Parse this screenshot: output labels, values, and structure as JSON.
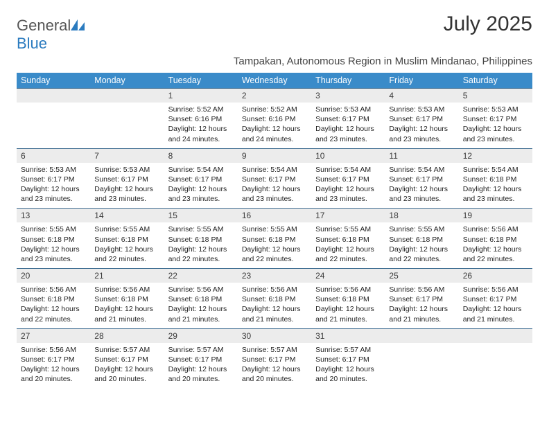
{
  "brand": {
    "name_a": "General",
    "name_b": "Blue"
  },
  "title": "July 2025",
  "location": "Tampakan, Autonomous Region in Muslim Mindanao, Philippines",
  "colors": {
    "header_bg": "#3a8bc9",
    "header_fg": "#ffffff",
    "daynum_bg": "#ececec",
    "daynum_border": "#3a6a8f",
    "logo_blue": "#2b7bbf",
    "text": "#222222"
  },
  "fonts": {
    "title_size": 30,
    "location_size": 15,
    "header_size": 12.5,
    "cell_size": 10.5
  },
  "day_labels": [
    "Sunday",
    "Monday",
    "Tuesday",
    "Wednesday",
    "Thursday",
    "Friday",
    "Saturday"
  ],
  "weeks": [
    {
      "nums": [
        "",
        "",
        "1",
        "2",
        "3",
        "4",
        "5"
      ],
      "cells": [
        null,
        null,
        {
          "sunrise": "5:52 AM",
          "sunset": "6:16 PM",
          "daylight": "12 hours and 24 minutes."
        },
        {
          "sunrise": "5:52 AM",
          "sunset": "6:16 PM",
          "daylight": "12 hours and 24 minutes."
        },
        {
          "sunrise": "5:53 AM",
          "sunset": "6:17 PM",
          "daylight": "12 hours and 23 minutes."
        },
        {
          "sunrise": "5:53 AM",
          "sunset": "6:17 PM",
          "daylight": "12 hours and 23 minutes."
        },
        {
          "sunrise": "5:53 AM",
          "sunset": "6:17 PM",
          "daylight": "12 hours and 23 minutes."
        }
      ]
    },
    {
      "nums": [
        "6",
        "7",
        "8",
        "9",
        "10",
        "11",
        "12"
      ],
      "cells": [
        {
          "sunrise": "5:53 AM",
          "sunset": "6:17 PM",
          "daylight": "12 hours and 23 minutes."
        },
        {
          "sunrise": "5:53 AM",
          "sunset": "6:17 PM",
          "daylight": "12 hours and 23 minutes."
        },
        {
          "sunrise": "5:54 AM",
          "sunset": "6:17 PM",
          "daylight": "12 hours and 23 minutes."
        },
        {
          "sunrise": "5:54 AM",
          "sunset": "6:17 PM",
          "daylight": "12 hours and 23 minutes."
        },
        {
          "sunrise": "5:54 AM",
          "sunset": "6:17 PM",
          "daylight": "12 hours and 23 minutes."
        },
        {
          "sunrise": "5:54 AM",
          "sunset": "6:17 PM",
          "daylight": "12 hours and 23 minutes."
        },
        {
          "sunrise": "5:54 AM",
          "sunset": "6:18 PM",
          "daylight": "12 hours and 23 minutes."
        }
      ]
    },
    {
      "nums": [
        "13",
        "14",
        "15",
        "16",
        "17",
        "18",
        "19"
      ],
      "cells": [
        {
          "sunrise": "5:55 AM",
          "sunset": "6:18 PM",
          "daylight": "12 hours and 23 minutes."
        },
        {
          "sunrise": "5:55 AM",
          "sunset": "6:18 PM",
          "daylight": "12 hours and 22 minutes."
        },
        {
          "sunrise": "5:55 AM",
          "sunset": "6:18 PM",
          "daylight": "12 hours and 22 minutes."
        },
        {
          "sunrise": "5:55 AM",
          "sunset": "6:18 PM",
          "daylight": "12 hours and 22 minutes."
        },
        {
          "sunrise": "5:55 AM",
          "sunset": "6:18 PM",
          "daylight": "12 hours and 22 minutes."
        },
        {
          "sunrise": "5:55 AM",
          "sunset": "6:18 PM",
          "daylight": "12 hours and 22 minutes."
        },
        {
          "sunrise": "5:56 AM",
          "sunset": "6:18 PM",
          "daylight": "12 hours and 22 minutes."
        }
      ]
    },
    {
      "nums": [
        "20",
        "21",
        "22",
        "23",
        "24",
        "25",
        "26"
      ],
      "cells": [
        {
          "sunrise": "5:56 AM",
          "sunset": "6:18 PM",
          "daylight": "12 hours and 22 minutes."
        },
        {
          "sunrise": "5:56 AM",
          "sunset": "6:18 PM",
          "daylight": "12 hours and 21 minutes."
        },
        {
          "sunrise": "5:56 AM",
          "sunset": "6:18 PM",
          "daylight": "12 hours and 21 minutes."
        },
        {
          "sunrise": "5:56 AM",
          "sunset": "6:18 PM",
          "daylight": "12 hours and 21 minutes."
        },
        {
          "sunrise": "5:56 AM",
          "sunset": "6:18 PM",
          "daylight": "12 hours and 21 minutes."
        },
        {
          "sunrise": "5:56 AM",
          "sunset": "6:17 PM",
          "daylight": "12 hours and 21 minutes."
        },
        {
          "sunrise": "5:56 AM",
          "sunset": "6:17 PM",
          "daylight": "12 hours and 21 minutes."
        }
      ]
    },
    {
      "nums": [
        "27",
        "28",
        "29",
        "30",
        "31",
        "",
        ""
      ],
      "cells": [
        {
          "sunrise": "5:56 AM",
          "sunset": "6:17 PM",
          "daylight": "12 hours and 20 minutes."
        },
        {
          "sunrise": "5:57 AM",
          "sunset": "6:17 PM",
          "daylight": "12 hours and 20 minutes."
        },
        {
          "sunrise": "5:57 AM",
          "sunset": "6:17 PM",
          "daylight": "12 hours and 20 minutes."
        },
        {
          "sunrise": "5:57 AM",
          "sunset": "6:17 PM",
          "daylight": "12 hours and 20 minutes."
        },
        {
          "sunrise": "5:57 AM",
          "sunset": "6:17 PM",
          "daylight": "12 hours and 20 minutes."
        },
        null,
        null
      ]
    }
  ],
  "labels": {
    "sunrise": "Sunrise:",
    "sunset": "Sunset:",
    "daylight": "Daylight:"
  }
}
